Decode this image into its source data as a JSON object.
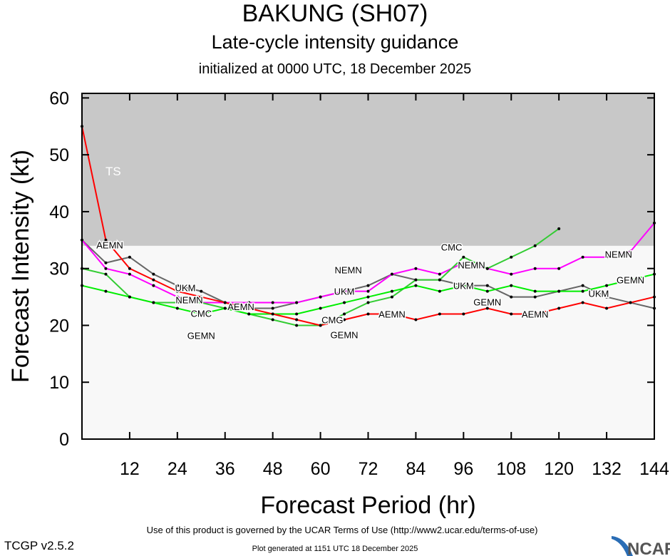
{
  "chart_data": {
    "type": "line",
    "title": "BAKUNG (SH07)",
    "subtitle": "Late-cycle intensity guidance",
    "initialized": "initialized at 0000 UTC, 18 December 2025",
    "xlabel": "Forecast Period (hr)",
    "ylabel": "Forecast Intensity (kt)",
    "xlim": [
      0,
      144
    ],
    "ylim": [
      0,
      60.8
    ],
    "xticks": [
      12,
      24,
      36,
      48,
      60,
      72,
      84,
      96,
      108,
      120,
      132,
      144
    ],
    "yticks": [
      0,
      10,
      20,
      30,
      40,
      50,
      60
    ],
    "band": {
      "label": "TS",
      "from": 34,
      "to": 60.8,
      "color": "#c8c8c8"
    },
    "background": "#f8f8f8",
    "x": [
      0,
      6,
      12,
      18,
      24,
      30,
      36,
      42,
      48,
      54,
      60,
      66,
      72,
      78,
      84,
      90,
      96,
      102,
      108,
      114,
      120,
      126,
      132,
      138,
      144
    ],
    "series": [
      {
        "name": "UKM",
        "color": "#666666",
        "values": [
          35,
          31,
          32,
          29,
          27,
          26,
          24,
          23,
          23,
          24,
          25,
          26,
          27,
          29,
          28,
          28,
          27,
          27,
          25,
          25,
          26,
          27,
          25,
          24,
          23
        ],
        "label_hours": [
          26,
          66,
          96,
          130
        ]
      },
      {
        "name": "NEMN",
        "color": "#ff00ff",
        "values": [
          35,
          30,
          29,
          27,
          25,
          24,
          24,
          24,
          24,
          24,
          25,
          26,
          26,
          29,
          30,
          29,
          31,
          30,
          29,
          30,
          30,
          32,
          32,
          33,
          38
        ],
        "label_hours": [
          27,
          67,
          98,
          135
        ]
      },
      {
        "name": "CMC",
        "color": "#33cc33",
        "values": [
          30,
          29,
          25,
          24,
          24,
          24,
          23,
          22,
          21,
          20,
          20,
          22,
          24,
          25,
          28,
          28,
          32,
          30,
          32,
          34,
          37,
          null,
          null,
          null,
          null
        ],
        "label_hours": [
          30,
          63,
          93
        ],
        "label_texts": [
          "CMC",
          "CMG",
          "CMC"
        ]
      },
      {
        "name": "GEMN",
        "color": "#00ee00",
        "values": [
          27,
          26,
          25,
          24,
          23,
          22,
          23,
          22,
          22,
          22,
          23,
          24,
          25,
          26,
          27,
          26,
          27,
          26,
          27,
          26,
          26,
          26,
          27,
          28,
          29
        ],
        "label_hours": [
          30,
          66,
          102,
          138
        ]
      },
      {
        "name": "AEMN",
        "color": "#ff0000",
        "values": [
          55,
          35,
          30,
          28,
          26,
          25,
          24,
          23,
          22,
          21,
          20,
          21,
          22,
          22,
          21,
          22,
          22,
          23,
          22,
          22,
          23,
          24,
          23,
          24,
          25
        ],
        "label_hours": [
          7,
          40,
          78,
          114
        ]
      }
    ]
  },
  "footer": {
    "terms": "Use of this product is governed by the UCAR Terms of Use (http://www2.ucar.edu/terms-of-use)",
    "generated": "Plot generated at 1151 UTC   18 December 2025",
    "version": "TCGP v2.5.2",
    "logo": "NCAR"
  }
}
